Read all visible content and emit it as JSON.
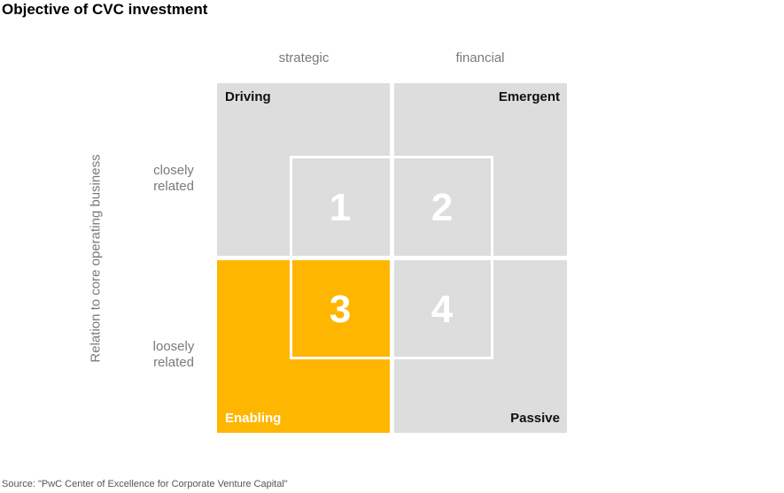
{
  "title": "Objective of CVC investment",
  "columns": [
    "strategic",
    "financial"
  ],
  "rows": [
    {
      "line1": "closely",
      "line2": "related"
    },
    {
      "line1": "loosely",
      "line2": "related"
    }
  ],
  "y_axis_label": "Relation to core operating business",
  "quadrants": {
    "top_left": "Driving",
    "top_right": "Emergent",
    "bottom_left": "Enabling",
    "bottom_right": "Passive"
  },
  "cells": [
    "1",
    "2",
    "3",
    "4"
  ],
  "source": "Source: \"PwC Center of Excellence for Corporate Venture Capital\"",
  "colors": {
    "quadrant_gray": "#dddddd",
    "highlight": "#ffb600",
    "grid_line": "#ffffff",
    "muted_text": "#7a7a7a"
  }
}
